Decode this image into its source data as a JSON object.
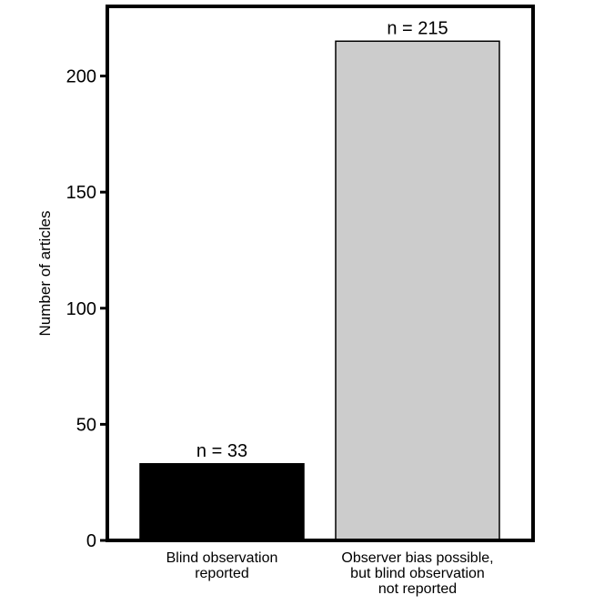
{
  "chart_data": {
    "type": "bar",
    "title": "",
    "xlabel": "",
    "ylabel": "Number of articles",
    "ylim": [
      0,
      230
    ],
    "yticks": [
      0,
      50,
      100,
      150,
      200
    ],
    "grid": false,
    "categories": [
      [
        "Blind observation",
        "reported"
      ],
      [
        "Observer bias possible,",
        "but blind observation",
        "not reported"
      ]
    ],
    "values": [
      33,
      215
    ],
    "data_labels": [
      "n = 33",
      "n = 215"
    ],
    "colors": [
      "#000000",
      "#cccccc"
    ]
  }
}
